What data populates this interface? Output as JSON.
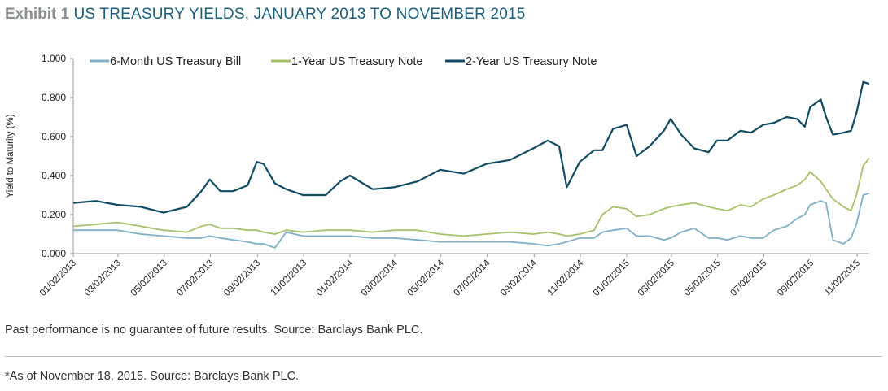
{
  "header": {
    "exhibit": "Exhibit 1",
    "title": "US TREASURY YIELDS, JANUARY 2013 TO NOVEMBER 2015"
  },
  "footnotes": {
    "performance": "Past performance is no guarantee of future results. Source: Barclays Bank PLC.",
    "as_of": "*As of November 18, 2015. Source: Barclays Bank PLC."
  },
  "chart_data": {
    "type": "line",
    "title": "US TREASURY YIELDS, JANUARY 2013 TO NOVEMBER 2015",
    "ylabel": "Yield to Maturity (%)",
    "xlabel": "",
    "ylim": [
      0,
      1.0
    ],
    "yticks": [
      "0.000",
      "0.200",
      "0.400",
      "0.600",
      "0.800",
      "1.000"
    ],
    "xlim": [
      "01/02/2013",
      "11/18/2015"
    ],
    "xticks": [
      "01/02/2013",
      "03/02/2013",
      "05/02/2013",
      "07/02/2013",
      "09/02/2013",
      "11/02/2013",
      "01/02/2014",
      "03/02/2014",
      "05/02/2014",
      "07/02/2014",
      "09/02/2014",
      "11/02/2014",
      "01/02/2015",
      "03/02/2015",
      "05/02/2015",
      "07/02/2015",
      "09/02/2015",
      "11/02/2015"
    ],
    "legend_position": "top",
    "grid": false,
    "x": [
      "01/02/2013",
      "02/01/2013",
      "03/01/2013",
      "04/01/2013",
      "05/01/2013",
      "06/01/2013",
      "06/20/2013",
      "07/01/2013",
      "07/15/2013",
      "08/01/2013",
      "08/20/2013",
      "09/01/2013",
      "09/10/2013",
      "09/25/2013",
      "10/10/2013",
      "11/01/2013",
      "12/01/2013",
      "12/20/2013",
      "01/02/2014",
      "02/01/2014",
      "03/01/2014",
      "04/01/2014",
      "05/01/2014",
      "06/01/2014",
      "07/01/2014",
      "08/01/2014",
      "09/01/2014",
      "09/20/2014",
      "10/05/2014",
      "10/15/2014",
      "11/01/2014",
      "11/20/2014",
      "12/01/2014",
      "12/15/2014",
      "01/02/2015",
      "01/15/2015",
      "02/01/2015",
      "02/20/2015",
      "03/01/2015",
      "03/15/2015",
      "04/01/2015",
      "04/20/2015",
      "05/01/2015",
      "05/15/2015",
      "06/01/2015",
      "06/15/2015",
      "07/01/2015",
      "07/15/2015",
      "08/01/2015",
      "08/15/2015",
      "08/25/2015",
      "09/01/2015",
      "09/15/2015",
      "09/22/2015",
      "10/01/2015",
      "10/15/2015",
      "10/25/2015",
      "11/01/2015",
      "11/10/2015",
      "11/18/2015"
    ],
    "series": [
      {
        "name": "6-Month US Treasury Bill",
        "color": "#7fb0c6",
        "values": [
          0.12,
          0.12,
          0.12,
          0.1,
          0.09,
          0.08,
          0.08,
          0.09,
          0.08,
          0.07,
          0.06,
          0.05,
          0.05,
          0.03,
          0.11,
          0.09,
          0.09,
          0.09,
          0.09,
          0.08,
          0.08,
          0.07,
          0.06,
          0.06,
          0.06,
          0.06,
          0.05,
          0.04,
          0.05,
          0.06,
          0.08,
          0.08,
          0.11,
          0.12,
          0.13,
          0.09,
          0.09,
          0.07,
          0.08,
          0.11,
          0.13,
          0.08,
          0.08,
          0.07,
          0.09,
          0.08,
          0.08,
          0.12,
          0.14,
          0.18,
          0.2,
          0.25,
          0.27,
          0.26,
          0.07,
          0.05,
          0.08,
          0.15,
          0.3,
          0.31
        ]
      },
      {
        "name": "1-Year US Treasury Note",
        "color": "#a6c16a",
        "values": [
          0.14,
          0.15,
          0.16,
          0.14,
          0.12,
          0.11,
          0.14,
          0.15,
          0.13,
          0.13,
          0.12,
          0.12,
          0.11,
          0.1,
          0.12,
          0.11,
          0.12,
          0.12,
          0.12,
          0.11,
          0.12,
          0.12,
          0.1,
          0.09,
          0.1,
          0.11,
          0.1,
          0.11,
          0.1,
          0.09,
          0.1,
          0.12,
          0.2,
          0.24,
          0.23,
          0.19,
          0.2,
          0.23,
          0.24,
          0.25,
          0.26,
          0.24,
          0.23,
          0.22,
          0.25,
          0.24,
          0.28,
          0.3,
          0.33,
          0.35,
          0.38,
          0.42,
          0.37,
          0.33,
          0.28,
          0.24,
          0.22,
          0.3,
          0.45,
          0.49
        ]
      },
      {
        "name": "2-Year US Treasury Note",
        "color": "#114b62",
        "values": [
          0.26,
          0.27,
          0.25,
          0.24,
          0.21,
          0.24,
          0.32,
          0.38,
          0.32,
          0.32,
          0.35,
          0.47,
          0.46,
          0.36,
          0.33,
          0.3,
          0.3,
          0.37,
          0.4,
          0.33,
          0.34,
          0.37,
          0.43,
          0.41,
          0.46,
          0.48,
          0.54,
          0.58,
          0.55,
          0.34,
          0.47,
          0.53,
          0.53,
          0.64,
          0.66,
          0.5,
          0.55,
          0.63,
          0.69,
          0.61,
          0.54,
          0.52,
          0.58,
          0.58,
          0.63,
          0.62,
          0.66,
          0.67,
          0.7,
          0.69,
          0.65,
          0.75,
          0.79,
          0.7,
          0.61,
          0.62,
          0.63,
          0.72,
          0.88,
          0.87
        ]
      }
    ]
  }
}
